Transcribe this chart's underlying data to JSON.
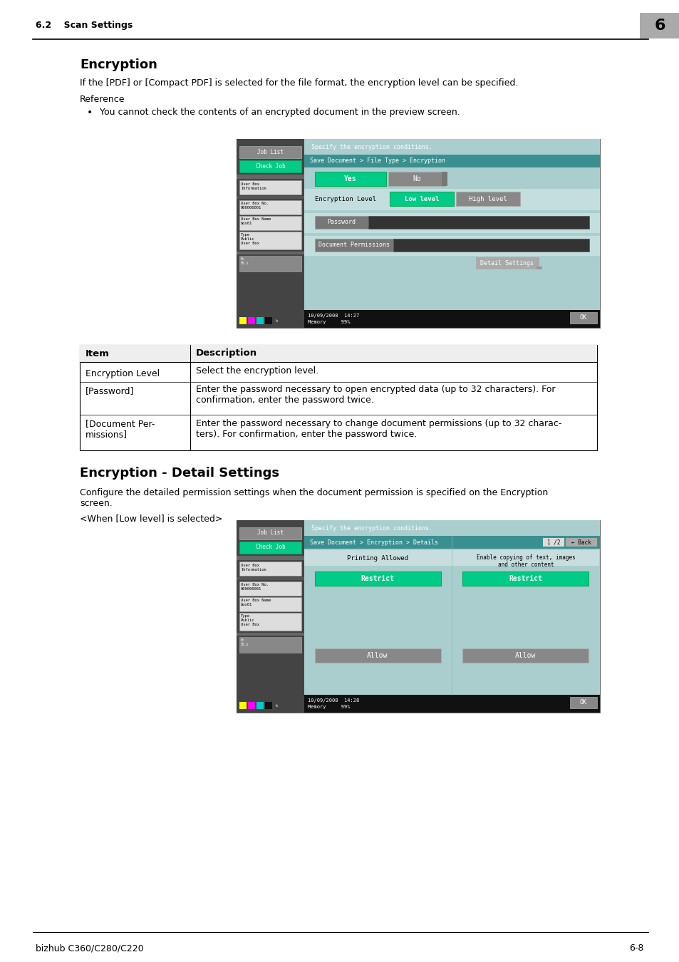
{
  "page_bg": "#ffffff",
  "header_text": "6.2    Scan Settings",
  "header_number": "6",
  "header_number_bg": "#aaaaaa",
  "footer_left": "bizhub C360/C280/C220",
  "footer_right": "6-8",
  "section1_title": "Encryption",
  "section1_body1": "If the [PDF] or [Compact PDF] is selected for the file format, the encryption level can be specified.",
  "section1_ref": "Reference",
  "section1_bullet": "You cannot check the contents of an encrypted document in the preview screen.",
  "table_headers": [
    "Item",
    "Description"
  ],
  "table_row0_left": "Encryption Level",
  "table_row0_right": "Select the encryption level.",
  "table_row1_left": "[Password]",
  "table_row1_right": "Enter the password necessary to open encrypted data (up to 32 characters). For\nconfirmation, enter the password twice.",
  "table_row2_left": "[Document Per-\nmissions]",
  "table_row2_right": "Enter the password necessary to change document permissions (up to 32 charac-\nters). For confirmation, enter the password twice.",
  "section2_title": "Encryption - Detail Settings",
  "section2_body": "Configure the detailed permission settings when the document permission is specified on the Encryption\nscreen.",
  "section2_sub": "<When [Low level] is selected>",
  "scr1_top_text": "Specify the encryption conditions.",
  "scr1_nav_text": "Save Document > File Type > Encryption",
  "scr1_yes": "Yes",
  "scr1_no": "No",
  "scr1_enc_label": "Encryption Level",
  "scr1_low": "Low level",
  "scr1_high": "High level",
  "scr1_pwd": "Password",
  "scr1_doc": "Document Permissions",
  "scr1_detail": "Detail Settings",
  "scr1_ok": "OK",
  "scr1_bottom": "10/09/2008  14:27\nMemory     99%",
  "scr2_top_text": "Specify the encryption conditions.",
  "scr2_nav_text": "Save Document > Encryption > Details",
  "scr2_nav_page": "1 /2",
  "scr2_back": "← Back",
  "scr2_print_label": "Printing Allowed",
  "scr2_copy_label": "Enable copying of text, images\nand other content",
  "scr2_restrict": "Restrict",
  "scr2_allow": "Allow",
  "scr2_ok": "OK",
  "scr2_bottom": "10/09/2008  14:28\nMemory     99%",
  "green_btn": "#00cc88",
  "gray_btn": "#777777",
  "dark_gray_btn": "#555555",
  "teal_bar": "#3a9090",
  "main_bg": "#aacece",
  "screen_bg": "#111111",
  "sidebar_bg": "#444444",
  "sidebar_dark": "#333333",
  "white_box": "#dddddd",
  "input_dark": "#333333",
  "detail_btn_bg": "#aaaaaa",
  "ok_btn_bg": "#888888"
}
